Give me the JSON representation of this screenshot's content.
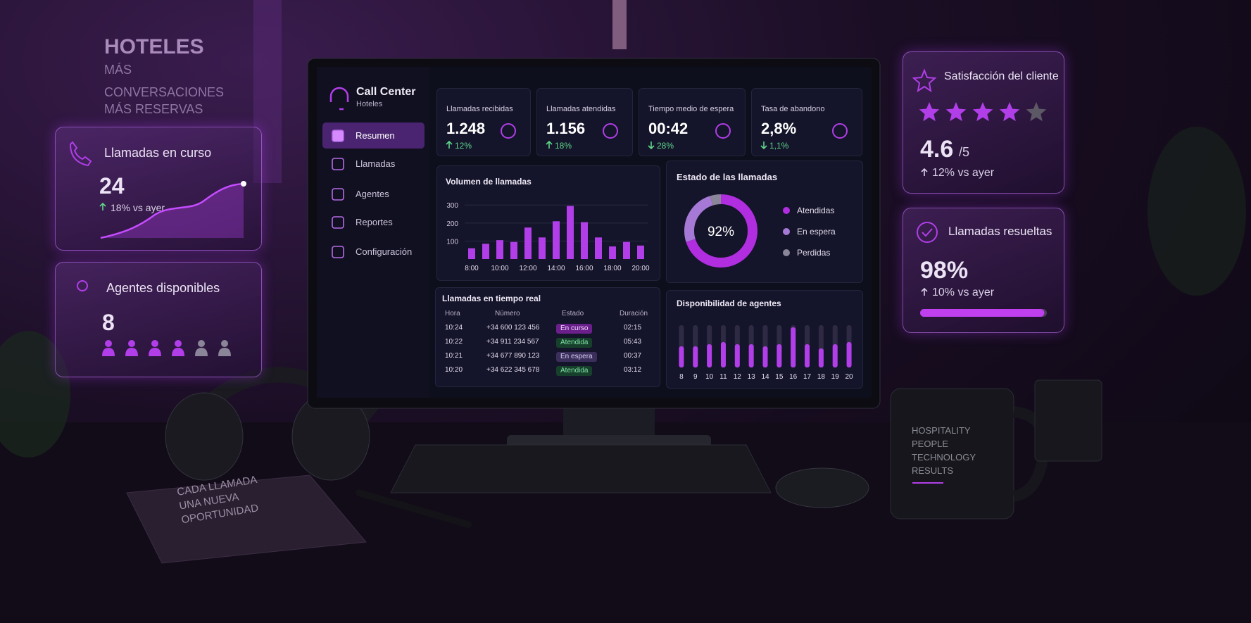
{
  "poster": {
    "title": "HOTELES",
    "lines": [
      "MÁS",
      "CONVERSACIONES",
      "MÁS RESERVAS"
    ]
  },
  "side_cards": [
    {
      "title": "Llamadas en curso",
      "value": "24",
      "change": "18% vs ayer"
    },
    {
      "title": "Agentes disponibles",
      "value": "8"
    }
  ],
  "dashboard": {
    "brand": {
      "title": "Call Center",
      "subtitle": "Hoteles"
    },
    "nav": [
      "Resumen",
      "Llamadas",
      "Agentes",
      "Reportes",
      "Configuración"
    ],
    "kpis": [
      {
        "label": "Llamadas recibidas",
        "value": "1.248",
        "change": "12%"
      },
      {
        "label": "Llamadas atendidas",
        "value": "1.156",
        "change": "18%"
      },
      {
        "label": "Tiempo medio de espera",
        "value": "00:42",
        "change": "28%"
      },
      {
        "label": "Tasa de abandono",
        "value": "2,8%",
        "change": "1,1%"
      }
    ],
    "volume_chart": {
      "type": "bar",
      "title": "Volumen de llamadas",
      "categories": [
        "8:00",
        null,
        "10:00",
        null,
        "12:00",
        null,
        "14:00",
        null,
        "16:00",
        null,
        "18:00",
        null,
        "20:00"
      ],
      "values": [
        60,
        85,
        105,
        95,
        175,
        120,
        210,
        295,
        205,
        120,
        70,
        95,
        75
      ],
      "color": "#b13ee8",
      "ylim": [
        0,
        340
      ],
      "yticks": [
        100,
        200,
        300
      ],
      "grid": true
    },
    "status_chart": {
      "type": "donut",
      "title": "Estado de las llamadas",
      "center_label": "92%",
      "categories": [
        "Atendidas",
        "En espera",
        "Perdidas"
      ],
      "values": [
        70,
        25,
        5
      ],
      "colors": [
        "#b02ee0",
        "#a779d6",
        "#8a8598"
      ]
    },
    "calls_table": {
      "title": "Llamadas en tiempo real",
      "columns": [
        "Hora",
        "Número",
        "Estado",
        "Duración"
      ],
      "rows": [
        [
          "10:24",
          "+34 600 123 456",
          "En curso",
          "02:15"
        ],
        [
          "10:22",
          "+34 911 234 567",
          "Atendida",
          "05:43"
        ],
        [
          "10:21",
          "+34 677 890 123",
          "En espera",
          "00:37"
        ],
        [
          "10:20",
          "+34 622 345 678",
          "Atendida",
          "03:12"
        ]
      ]
    },
    "availability_chart": {
      "type": "bar",
      "title": "Disponibilidad de agentes",
      "categories": [
        "8",
        "9",
        "10",
        "11",
        "12",
        "13",
        "14",
        "15",
        "16",
        "17",
        "18",
        "19",
        "20"
      ],
      "values": [
        50,
        50,
        55,
        60,
        55,
        55,
        50,
        55,
        95,
        55,
        45,
        55,
        60
      ],
      "ylim": [
        0,
        100
      ],
      "color": "#b13ee8"
    }
  },
  "right_cards": [
    {
      "title": "Satisfacción del cliente",
      "value": "4.6",
      "scale": "/5",
      "change": "12% vs ayer"
    },
    {
      "title": "Llamadas resueltas",
      "value": 98,
      "value_label": "98%",
      "change": "10% vs ayer"
    }
  ],
  "mug": [
    "HOSPITALITY",
    "PEOPLE",
    "TECHNOLOGY",
    "RESULTS"
  ],
  "notebook": [
    "CADA LLAMADA",
    "UNA NUEVA",
    "OPORTUNIDAD"
  ]
}
